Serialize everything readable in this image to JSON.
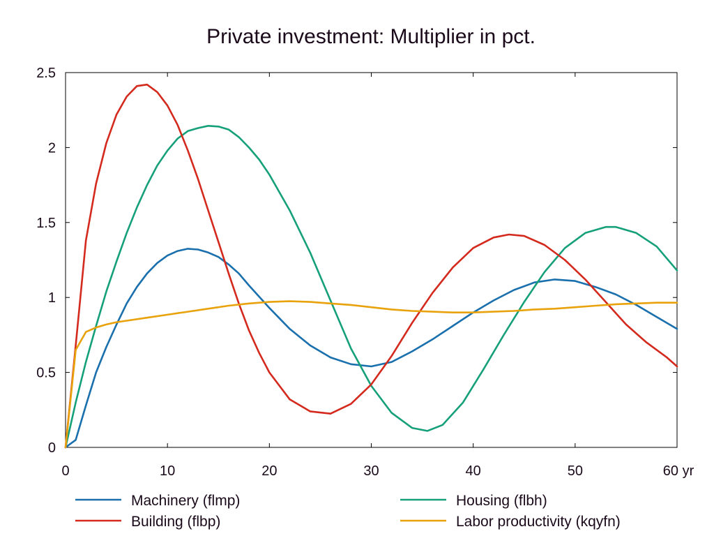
{
  "chart_data": {
    "type": "line",
    "title": "Private investment: Multiplier in pct.",
    "xlabel": "",
    "ylabel": "",
    "xlim": [
      0,
      60
    ],
    "ylim": [
      0,
      2.5
    ],
    "x_ticks": [
      {
        "value": 0,
        "label": "0"
      },
      {
        "value": 10,
        "label": "10"
      },
      {
        "value": 20,
        "label": "20"
      },
      {
        "value": 30,
        "label": "30"
      },
      {
        "value": 40,
        "label": "40"
      },
      {
        "value": 50,
        "label": "50"
      },
      {
        "value": 60,
        "label": "60 yr"
      }
    ],
    "y_ticks": [
      {
        "value": 0,
        "label": "0"
      },
      {
        "value": 0.5,
        "label": "0.5"
      },
      {
        "value": 1,
        "label": "1"
      },
      {
        "value": 1.5,
        "label": "1.5"
      },
      {
        "value": 2,
        "label": "2"
      },
      {
        "value": 2.5,
        "label": "2.5"
      }
    ],
    "grid": false,
    "legend_position": "bottom",
    "series": [
      {
        "name": "Machinery (flmp)",
        "color": "#1a6fad",
        "points": [
          [
            0,
            0
          ],
          [
            1,
            0.05
          ],
          [
            2,
            0.28
          ],
          [
            3,
            0.5
          ],
          [
            4,
            0.67
          ],
          [
            5,
            0.82
          ],
          [
            6,
            0.96
          ],
          [
            7,
            1.07
          ],
          [
            8,
            1.16
          ],
          [
            9,
            1.23
          ],
          [
            10,
            1.28
          ],
          [
            11,
            1.31
          ],
          [
            12,
            1.325
          ],
          [
            13,
            1.32
          ],
          [
            14,
            1.3
          ],
          [
            15,
            1.27
          ],
          [
            16,
            1.22
          ],
          [
            17,
            1.16
          ],
          [
            18,
            1.08
          ],
          [
            20,
            0.93
          ],
          [
            22,
            0.79
          ],
          [
            24,
            0.68
          ],
          [
            26,
            0.6
          ],
          [
            28,
            0.555
          ],
          [
            30,
            0.54
          ],
          [
            32,
            0.57
          ],
          [
            34,
            0.64
          ],
          [
            36,
            0.72
          ],
          [
            38,
            0.81
          ],
          [
            40,
            0.9
          ],
          [
            42,
            0.98
          ],
          [
            44,
            1.05
          ],
          [
            46,
            1.1
          ],
          [
            48,
            1.12
          ],
          [
            50,
            1.11
          ],
          [
            52,
            1.07
          ],
          [
            54,
            1.02
          ],
          [
            56,
            0.95
          ],
          [
            58,
            0.87
          ],
          [
            60,
            0.79
          ]
        ]
      },
      {
        "name": "Housing (flbh)",
        "color": "#16a07a",
        "points": [
          [
            0,
            0
          ],
          [
            1,
            0.3
          ],
          [
            2,
            0.57
          ],
          [
            3,
            0.81
          ],
          [
            4,
            1.04
          ],
          [
            5,
            1.24
          ],
          [
            6,
            1.43
          ],
          [
            7,
            1.6
          ],
          [
            8,
            1.75
          ],
          [
            9,
            1.88
          ],
          [
            10,
            1.98
          ],
          [
            11,
            2.06
          ],
          [
            12,
            2.11
          ],
          [
            13,
            2.13
          ],
          [
            14,
            2.145
          ],
          [
            15,
            2.14
          ],
          [
            16,
            2.12
          ],
          [
            17,
            2.07
          ],
          [
            18,
            2.0
          ],
          [
            19,
            1.92
          ],
          [
            20,
            1.82
          ],
          [
            22,
            1.58
          ],
          [
            24,
            1.3
          ],
          [
            26,
            0.98
          ],
          [
            28,
            0.66
          ],
          [
            30,
            0.41
          ],
          [
            32,
            0.23
          ],
          [
            34,
            0.13
          ],
          [
            35.5,
            0.11
          ],
          [
            37,
            0.15
          ],
          [
            39,
            0.3
          ],
          [
            41,
            0.52
          ],
          [
            43,
            0.75
          ],
          [
            45,
            0.97
          ],
          [
            47,
            1.17
          ],
          [
            49,
            1.33
          ],
          [
            51,
            1.43
          ],
          [
            53,
            1.47
          ],
          [
            54,
            1.47
          ],
          [
            56,
            1.43
          ],
          [
            58,
            1.34
          ],
          [
            60,
            1.18
          ]
        ]
      },
      {
        "name": "Building (flbp)",
        "color": "#d42a1e",
        "points": [
          [
            0,
            0
          ],
          [
            1,
            0.68
          ],
          [
            2,
            1.38
          ],
          [
            3,
            1.76
          ],
          [
            4,
            2.03
          ],
          [
            5,
            2.22
          ],
          [
            6,
            2.34
          ],
          [
            7,
            2.41
          ],
          [
            8,
            2.42
          ],
          [
            9,
            2.37
          ],
          [
            10,
            2.28
          ],
          [
            11,
            2.15
          ],
          [
            12,
            1.98
          ],
          [
            13,
            1.79
          ],
          [
            14,
            1.58
          ],
          [
            15,
            1.37
          ],
          [
            16,
            1.16
          ],
          [
            17,
            0.96
          ],
          [
            18,
            0.78
          ],
          [
            19,
            0.63
          ],
          [
            20,
            0.5
          ],
          [
            22,
            0.32
          ],
          [
            24,
            0.24
          ],
          [
            26,
            0.225
          ],
          [
            28,
            0.29
          ],
          [
            30,
            0.42
          ],
          [
            32,
            0.61
          ],
          [
            34,
            0.83
          ],
          [
            36,
            1.03
          ],
          [
            38,
            1.2
          ],
          [
            40,
            1.33
          ],
          [
            42,
            1.4
          ],
          [
            43.5,
            1.42
          ],
          [
            45,
            1.41
          ],
          [
            47,
            1.35
          ],
          [
            49,
            1.25
          ],
          [
            51,
            1.12
          ],
          [
            53,
            0.97
          ],
          [
            55,
            0.82
          ],
          [
            57,
            0.7
          ],
          [
            59,
            0.6
          ],
          [
            60,
            0.54
          ]
        ]
      },
      {
        "name": "Labor productivity (kqyfn)",
        "color": "#e8a20c",
        "points": [
          [
            0,
            0
          ],
          [
            1,
            0.65
          ],
          [
            2,
            0.77
          ],
          [
            3,
            0.8
          ],
          [
            4,
            0.82
          ],
          [
            5,
            0.835
          ],
          [
            6,
            0.845
          ],
          [
            8,
            0.865
          ],
          [
            10,
            0.885
          ],
          [
            12,
            0.905
          ],
          [
            14,
            0.925
          ],
          [
            16,
            0.945
          ],
          [
            18,
            0.96
          ],
          [
            20,
            0.97
          ],
          [
            22,
            0.975
          ],
          [
            24,
            0.97
          ],
          [
            26,
            0.96
          ],
          [
            28,
            0.95
          ],
          [
            30,
            0.935
          ],
          [
            32,
            0.92
          ],
          [
            34,
            0.91
          ],
          [
            36,
            0.905
          ],
          [
            38,
            0.9
          ],
          [
            40,
            0.9
          ],
          [
            42,
            0.905
          ],
          [
            44,
            0.91
          ],
          [
            46,
            0.92
          ],
          [
            48,
            0.925
          ],
          [
            50,
            0.935
          ],
          [
            52,
            0.945
          ],
          [
            54,
            0.955
          ],
          [
            56,
            0.96
          ],
          [
            58,
            0.965
          ],
          [
            60,
            0.965
          ]
        ]
      }
    ]
  }
}
